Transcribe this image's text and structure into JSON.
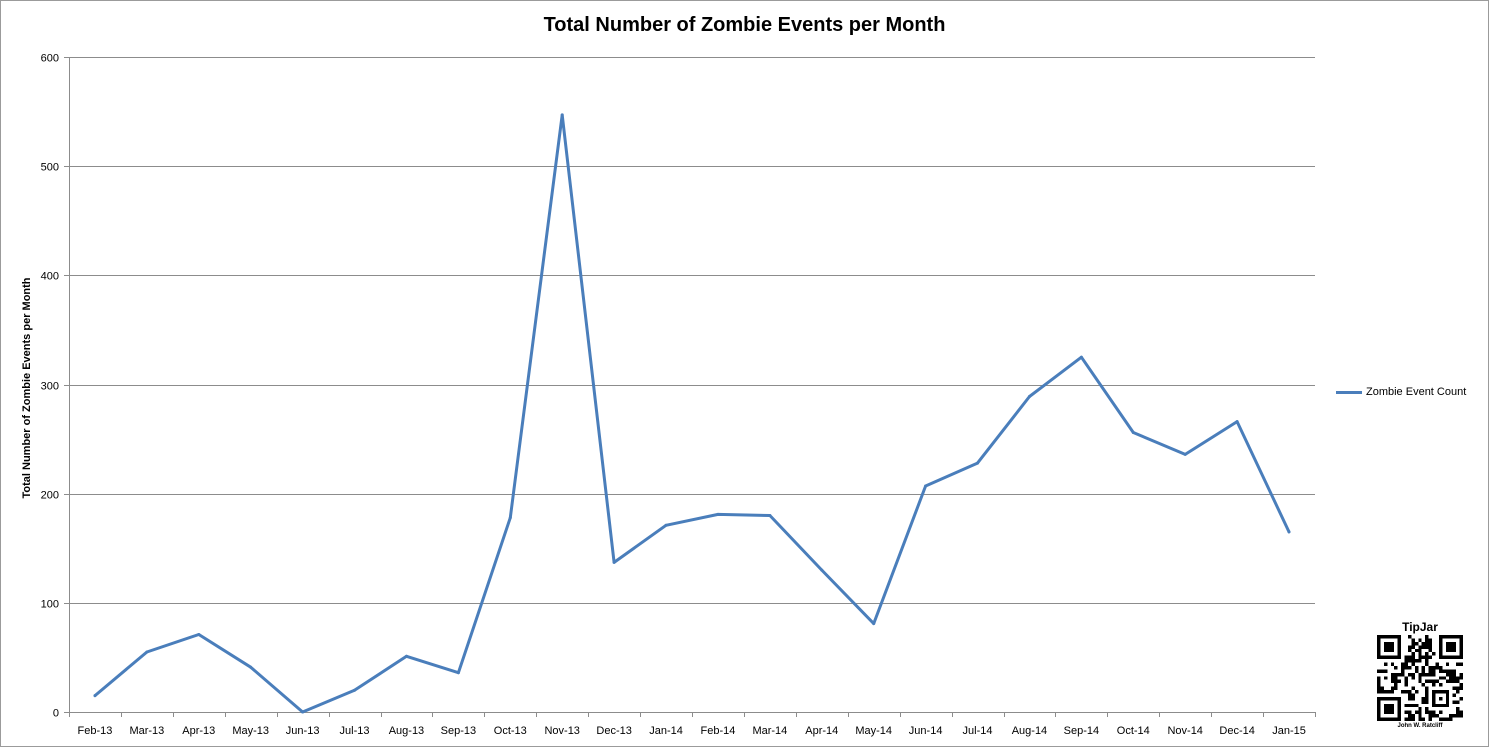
{
  "chart_data": {
    "type": "line",
    "title": "Total Number of Zombie Events per Month",
    "xlabel": "",
    "ylabel": "Total Number of Zombie Events per Month",
    "categories": [
      "Feb-13",
      "Mar-13",
      "Apr-13",
      "May-13",
      "Jun-13",
      "Jul-13",
      "Aug-13",
      "Sep-13",
      "Oct-13",
      "Nov-13",
      "Dec-13",
      "Jan-14",
      "Feb-14",
      "Mar-14",
      "Apr-14",
      "May-14",
      "Jun-14",
      "Jul-14",
      "Aug-14",
      "Sep-14",
      "Oct-14",
      "Nov-14",
      "Dec-14",
      "Jan-15"
    ],
    "series": [
      {
        "name": "Zombie Event Count",
        "color": "#4a7ebb",
        "values": [
          15,
          55,
          71,
          41,
          0,
          20,
          51,
          36,
          178,
          547,
          137,
          171,
          181,
          180,
          130,
          81,
          207,
          228,
          289,
          325,
          256,
          236,
          266,
          165
        ]
      }
    ],
    "ylim": [
      0,
      600
    ],
    "yticks": [
      0,
      100,
      200,
      300,
      400,
      500,
      600
    ],
    "grid": "horizontal",
    "legend_position": "right"
  },
  "tipjar": {
    "title": "TipJar",
    "author": "John W. Ratcliff"
  }
}
